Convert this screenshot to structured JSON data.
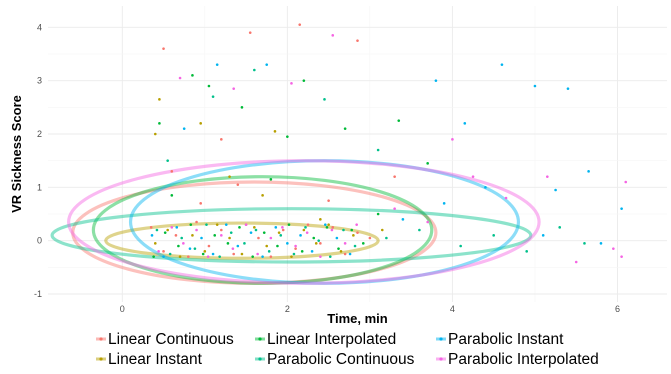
{
  "chart_data": {
    "type": "scatter",
    "title": "",
    "xlabel": "Time, min",
    "ylabel": "VR Sickness Score",
    "xlim": [
      -0.9,
      6.6
    ],
    "ylim": [
      -1.15,
      4.4
    ],
    "x_ticks": [
      0,
      2,
      4,
      6
    ],
    "y_ticks": [
      -1,
      0,
      1,
      2,
      3,
      4
    ],
    "grid": true,
    "legend_position": "bottom",
    "series": [
      {
        "name": "Linear Continuous",
        "color": "#F8766D",
        "ellipse": {
          "cx": 1.6,
          "cy": 0.15,
          "rx": 2.2,
          "ry": 0.95
        },
        "points": [
          [
            0.35,
            0.25
          ],
          [
            0.5,
            -0.2
          ],
          [
            0.65,
            0.1
          ],
          [
            0.8,
            -0.3
          ],
          [
            0.9,
            0.35
          ],
          [
            1.05,
            -0.1
          ],
          [
            1.2,
            0.2
          ],
          [
            1.35,
            -0.25
          ],
          [
            1.5,
            0.3
          ],
          [
            1.65,
            0.05
          ],
          [
            1.8,
            -0.3
          ],
          [
            1.95,
            0.2
          ],
          [
            2.1,
            -0.15
          ],
          [
            2.25,
            0.3
          ],
          [
            2.4,
            -0.05
          ],
          [
            2.55,
            0.25
          ],
          [
            2.7,
            -0.25
          ],
          [
            2.85,
            0.15
          ],
          [
            3.0,
            0.05
          ],
          [
            0.6,
            1.3
          ],
          [
            1.2,
            1.9
          ],
          [
            1.55,
            3.9
          ],
          [
            2.15,
            4.05
          ],
          [
            2.85,
            3.75
          ],
          [
            0.5,
            3.6
          ],
          [
            1.4,
            1.05
          ],
          [
            2.5,
            0.75
          ],
          [
            3.3,
            1.2
          ],
          [
            0.95,
            0.7
          ]
        ]
      },
      {
        "name": "Linear Instant",
        "color": "#B79F00",
        "ellipse": {
          "cx": 1.45,
          "cy": 0.0,
          "rx": 1.65,
          "ry": 0.33
        },
        "points": [
          [
            0.4,
            -0.05
          ],
          [
            0.55,
            0.2
          ],
          [
            0.7,
            -0.3
          ],
          [
            0.85,
            0.1
          ],
          [
            1.0,
            -0.2
          ],
          [
            1.15,
            0.3
          ],
          [
            1.3,
            0.05
          ],
          [
            1.45,
            -0.25
          ],
          [
            1.6,
            0.25
          ],
          [
            1.75,
            -0.1
          ],
          [
            1.9,
            0.15
          ],
          [
            2.05,
            -0.3
          ],
          [
            2.2,
            0.2
          ],
          [
            2.35,
            -0.05
          ],
          [
            2.5,
            0.3
          ],
          [
            2.65,
            -0.2
          ],
          [
            2.8,
            0.1
          ],
          [
            0.4,
            2.0
          ],
          [
            0.95,
            2.2
          ],
          [
            1.3,
            1.2
          ],
          [
            1.7,
            0.85
          ],
          [
            2.4,
            0.4
          ],
          [
            0.45,
            2.65
          ],
          [
            1.85,
            2.05
          ],
          [
            3.15,
            0.2
          ]
        ]
      },
      {
        "name": "Linear Interpolated",
        "color": "#00BA38",
        "ellipse": {
          "cx": 1.7,
          "cy": 0.2,
          "rx": 2.05,
          "ry": 1.0
        },
        "points": [
          [
            0.38,
            -0.3
          ],
          [
            0.52,
            0.15
          ],
          [
            0.68,
            -0.1
          ],
          [
            0.83,
            0.3
          ],
          [
            0.98,
            -0.25
          ],
          [
            1.12,
            0.1
          ],
          [
            1.28,
            -0.05
          ],
          [
            1.42,
            0.25
          ],
          [
            1.58,
            -0.3
          ],
          [
            1.72,
            0.15
          ],
          [
            1.88,
            -0.1
          ],
          [
            2.02,
            0.3
          ],
          [
            2.18,
            -0.2
          ],
          [
            2.32,
            0.05
          ],
          [
            2.48,
            0.25
          ],
          [
            2.62,
            -0.15
          ],
          [
            2.78,
            0.2
          ],
          [
            2.92,
            -0.05
          ],
          [
            0.45,
            2.2
          ],
          [
            0.85,
            3.1
          ],
          [
            1.05,
            2.9
          ],
          [
            1.45,
            2.5
          ],
          [
            2.0,
            1.95
          ],
          [
            2.2,
            3.0
          ],
          [
            2.7,
            2.1
          ],
          [
            3.35,
            2.25
          ],
          [
            3.7,
            1.45
          ],
          [
            0.6,
            0.85
          ],
          [
            1.8,
            1.15
          ],
          [
            3.1,
            0.5
          ]
        ]
      },
      {
        "name": "Parabolic Continuous",
        "color": "#00C08B",
        "ellipse": {
          "cx": 2.05,
          "cy": 0.1,
          "rx": 2.9,
          "ry": 0.5
        },
        "points": [
          [
            0.42,
            0.2
          ],
          [
            0.58,
            -0.25
          ],
          [
            0.72,
            0.05
          ],
          [
            0.88,
            -0.15
          ],
          [
            1.02,
            0.3
          ],
          [
            1.18,
            -0.3
          ],
          [
            1.32,
            0.15
          ],
          [
            1.48,
            -0.05
          ],
          [
            1.62,
            0.2
          ],
          [
            1.78,
            -0.2
          ],
          [
            1.92,
            0.1
          ],
          [
            2.08,
            -0.25
          ],
          [
            2.22,
            0.25
          ],
          [
            2.38,
            0.0
          ],
          [
            2.52,
            -0.3
          ],
          [
            2.68,
            0.2
          ],
          [
            2.82,
            -0.1
          ],
          [
            3.2,
            0.05
          ],
          [
            3.6,
            0.2
          ],
          [
            4.1,
            -0.1
          ],
          [
            4.5,
            0.1
          ],
          [
            4.9,
            -0.2
          ],
          [
            5.3,
            0.25
          ],
          [
            5.6,
            -0.05
          ],
          [
            0.55,
            1.5
          ],
          [
            1.1,
            2.7
          ],
          [
            1.6,
            3.2
          ],
          [
            2.45,
            2.65
          ],
          [
            3.1,
            1.7
          ]
        ]
      },
      {
        "name": "Parabolic Instant",
        "color": "#00B4EF",
        "ellipse": {
          "cx": 2.45,
          "cy": 0.35,
          "rx": 2.35,
          "ry": 1.15
        },
        "points": [
          [
            0.36,
            0.1
          ],
          [
            0.5,
            -0.3
          ],
          [
            0.66,
            0.25
          ],
          [
            0.82,
            -0.15
          ],
          [
            0.96,
            0.05
          ],
          [
            1.1,
            -0.25
          ],
          [
            1.26,
            0.3
          ],
          [
            1.4,
            -0.1
          ],
          [
            1.56,
            0.15
          ],
          [
            1.7,
            -0.3
          ],
          [
            1.86,
            0.25
          ],
          [
            2.0,
            -0.05
          ],
          [
            2.16,
            0.1
          ],
          [
            2.3,
            -0.2
          ],
          [
            2.46,
            0.3
          ],
          [
            2.6,
            0.05
          ],
          [
            2.76,
            -0.25
          ],
          [
            3.4,
            0.4
          ],
          [
            3.9,
            0.7
          ],
          [
            4.4,
            1.0
          ],
          [
            4.6,
            3.3
          ],
          [
            5.0,
            2.9
          ],
          [
            5.25,
            0.95
          ],
          [
            5.4,
            2.85
          ],
          [
            5.65,
            1.3
          ],
          [
            6.05,
            0.6
          ],
          [
            1.15,
            3.3
          ],
          [
            1.75,
            3.3
          ],
          [
            0.75,
            2.1
          ],
          [
            3.8,
            3.0
          ],
          [
            4.15,
            2.2
          ],
          [
            5.1,
            0.1
          ],
          [
            5.8,
            -0.05
          ]
        ]
      },
      {
        "name": "Parabolic Interpolated",
        "color": "#F564E3",
        "ellipse": {
          "cx": 2.2,
          "cy": 0.35,
          "rx": 2.85,
          "ry": 1.15
        },
        "points": [
          [
            0.44,
            -0.2
          ],
          [
            0.6,
            0.25
          ],
          [
            0.74,
            -0.05
          ],
          [
            0.9,
            0.2
          ],
          [
            1.04,
            -0.3
          ],
          [
            1.2,
            0.1
          ],
          [
            1.34,
            -0.15
          ],
          [
            1.5,
            0.3
          ],
          [
            1.64,
            -0.25
          ],
          [
            1.8,
            0.05
          ],
          [
            1.94,
            0.25
          ],
          [
            2.1,
            -0.1
          ],
          [
            2.24,
            0.15
          ],
          [
            2.4,
            -0.3
          ],
          [
            2.54,
            0.2
          ],
          [
            2.7,
            -0.05
          ],
          [
            2.84,
            0.3
          ],
          [
            3.3,
            0.6
          ],
          [
            3.7,
            0.35
          ],
          [
            4.25,
            1.2
          ],
          [
            4.65,
            0.8
          ],
          [
            5.15,
            1.2
          ],
          [
            5.5,
            -0.4
          ],
          [
            5.95,
            -0.15
          ],
          [
            6.1,
            1.1
          ],
          [
            6.05,
            -0.3
          ],
          [
            1.35,
            2.85
          ],
          [
            2.05,
            2.95
          ],
          [
            2.55,
            3.85
          ],
          [
            0.7,
            3.05
          ],
          [
            4.0,
            1.9
          ]
        ]
      }
    ]
  }
}
